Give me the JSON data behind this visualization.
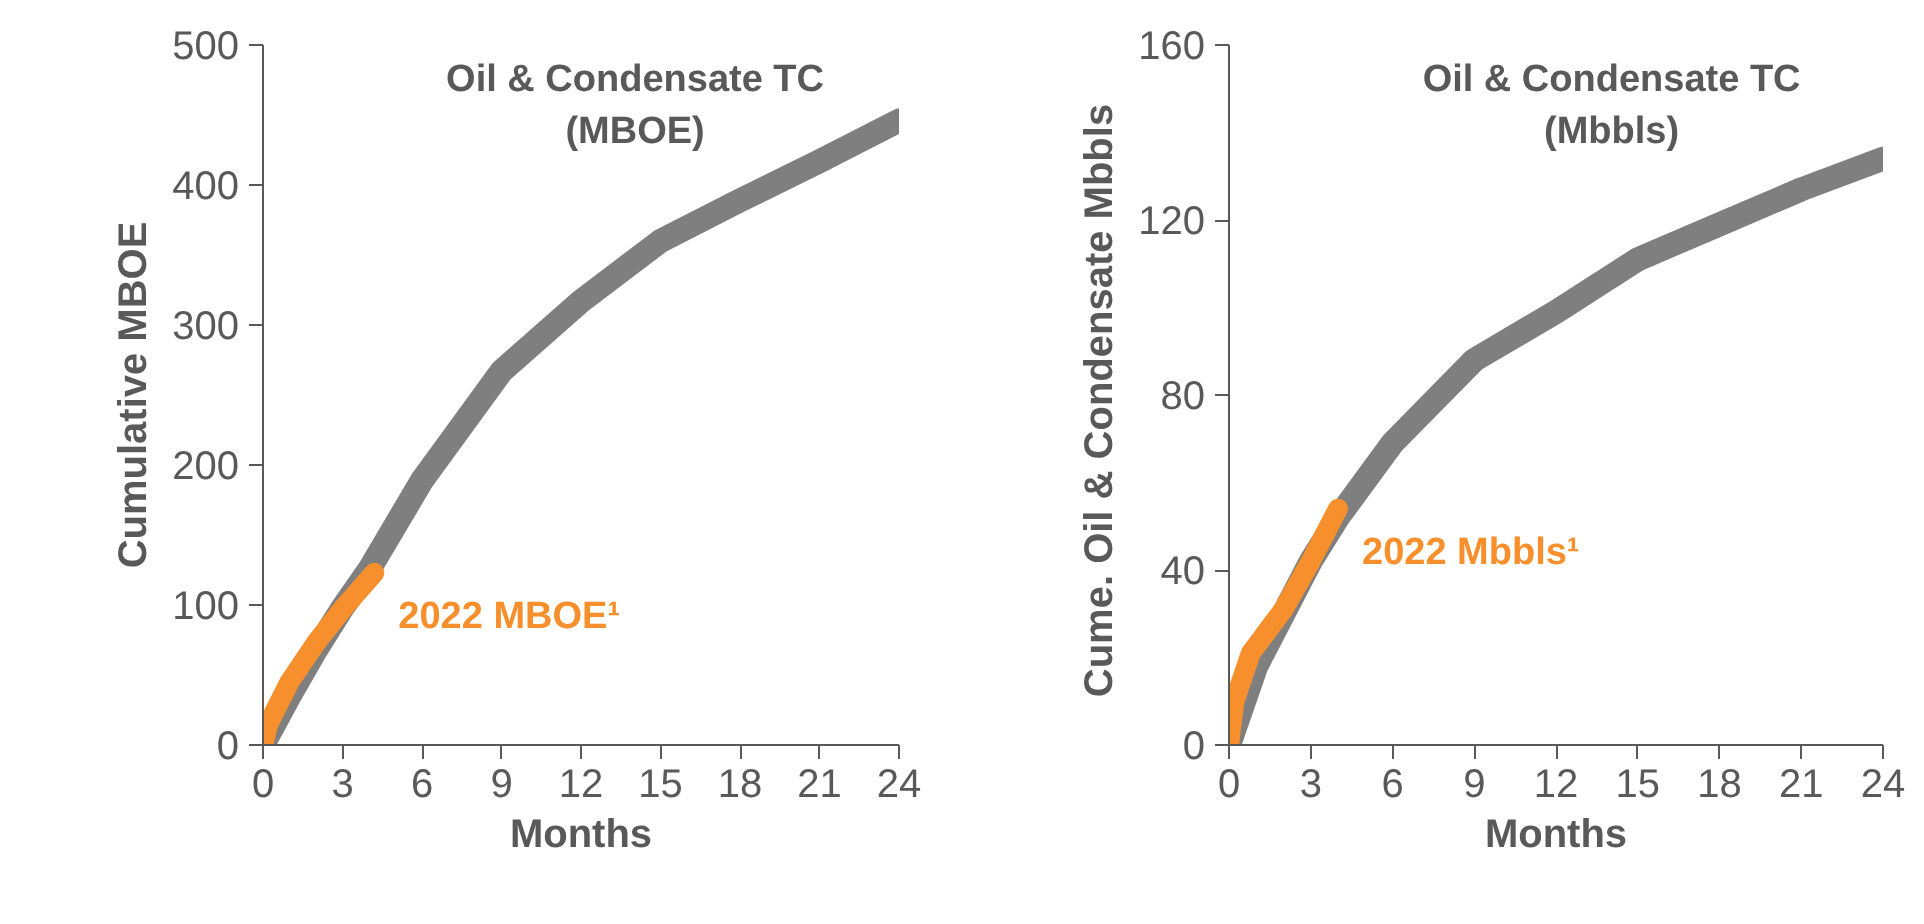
{
  "chart_data": [
    {
      "type": "line",
      "xlabel": "Months",
      "ylabel": "Cumulative MBOE",
      "xlim": [
        0,
        24
      ],
      "ylim": [
        0,
        500
      ],
      "xticks": [
        0,
        3,
        6,
        9,
        12,
        15,
        18,
        21,
        24
      ],
      "yticks": [
        0,
        100,
        200,
        300,
        400,
        500
      ],
      "grid": false,
      "line_style": "solid",
      "series": [
        {
          "name": "Oil & Condensate TC\n(MBOE)",
          "color": "#7f7f7f",
          "x": [
            0,
            1,
            2,
            3,
            4,
            6,
            9,
            12,
            15,
            18,
            21,
            24
          ],
          "values": [
            0,
            35,
            68,
            98,
            125,
            189,
            267,
            317,
            360,
            389,
            417,
            446
          ]
        },
        {
          "name": "2022 MBOE¹",
          "color": "#f7902c",
          "x": [
            0,
            0.2,
            1,
            2,
            3,
            4.2
          ],
          "values": [
            0,
            15,
            45,
            73,
            97,
            123
          ]
        }
      ]
    },
    {
      "type": "line",
      "xlabel": "Months",
      "ylabel": "Cume. Oil & Condensate  Mbbls",
      "xlim": [
        0,
        24
      ],
      "ylim": [
        0,
        160
      ],
      "xticks": [
        0,
        3,
        6,
        9,
        12,
        15,
        18,
        21,
        24
      ],
      "yticks": [
        0,
        40,
        80,
        120,
        160
      ],
      "grid": false,
      "line_style": "solid",
      "series": [
        {
          "name": "Oil & Condensate TC\n(Mbbls)",
          "color": "#7f7f7f",
          "x": [
            0,
            1,
            2,
            3,
            4,
            6,
            9,
            12,
            15,
            18,
            21,
            24
          ],
          "values": [
            0,
            18,
            30,
            42,
            52,
            69,
            88,
            99,
            111,
            119,
            127,
            134
          ]
        },
        {
          "name": "2022 Mbbls¹",
          "color": "#f7902c",
          "x": [
            0,
            0.2,
            0.8,
            2,
            3,
            4
          ],
          "values": [
            0,
            10,
            21,
            31,
            42,
            54
          ]
        }
      ]
    }
  ]
}
